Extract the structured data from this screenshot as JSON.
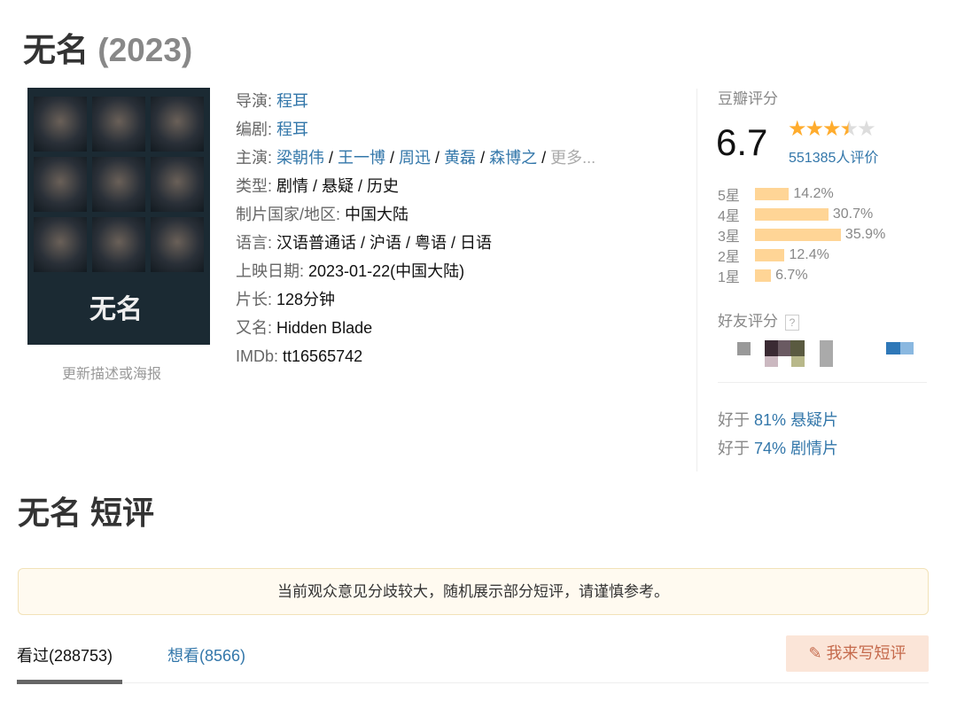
{
  "header": {
    "title": "无名",
    "year": "(2023)"
  },
  "poster": {
    "title_art": "无名",
    "caption": "更新描述或海报"
  },
  "info": {
    "director": {
      "label": "导演",
      "value": "程耳"
    },
    "writer": {
      "label": "编剧",
      "value": "程耳"
    },
    "cast": {
      "label": "主演",
      "names": [
        "梁朝伟",
        "王一博",
        "周迅",
        "黄磊",
        "森博之"
      ],
      "more": "更多..."
    },
    "genre": {
      "label": "类型",
      "value": "剧情 / 悬疑 / 历史"
    },
    "country": {
      "label": "制片国家/地区",
      "value": "中国大陆"
    },
    "language": {
      "label": "语言",
      "value": "汉语普通话 / 沪语 / 粤语 / 日语"
    },
    "release": {
      "label": "上映日期",
      "value": "2023-01-22(中国大陆)"
    },
    "runtime": {
      "label": "片长",
      "value": "128分钟"
    },
    "aka": {
      "label": "又名",
      "value": "Hidden Blade"
    },
    "imdb": {
      "label": "IMDb",
      "value": "tt16565742"
    }
  },
  "rating": {
    "label": "豆瓣评分",
    "score": "6.7",
    "stars": 3.5,
    "votes": "551385人评价",
    "distribution": [
      {
        "star": "5星",
        "pct": "14.2%",
        "value": 14.2
      },
      {
        "star": "4星",
        "pct": "30.7%",
        "value": 30.7
      },
      {
        "star": "3星",
        "pct": "35.9%",
        "value": 35.9
      },
      {
        "star": "2星",
        "pct": "12.4%",
        "value": 12.4
      },
      {
        "star": "1星",
        "pct": "6.7%",
        "value": 6.7
      }
    ],
    "star_color": "#ffac2d",
    "bar_color": "#ffd596"
  },
  "friends": {
    "label": "好友评分",
    "help": "?"
  },
  "better_than": [
    {
      "prefix": "好于",
      "pct": "81%",
      "genre": "悬疑片"
    },
    {
      "prefix": "好于",
      "pct": "74%",
      "genre": "剧情片"
    }
  ],
  "comments": {
    "title": "无名 短评",
    "notice": "当前观众意见分歧较大，随机展示部分短评，请谨慎参考。",
    "tabs": [
      {
        "label": "看过(288753)"
      },
      {
        "label": "想看(8566)"
      }
    ],
    "write_button": "我来写短评"
  },
  "link_color": "#3377aa"
}
